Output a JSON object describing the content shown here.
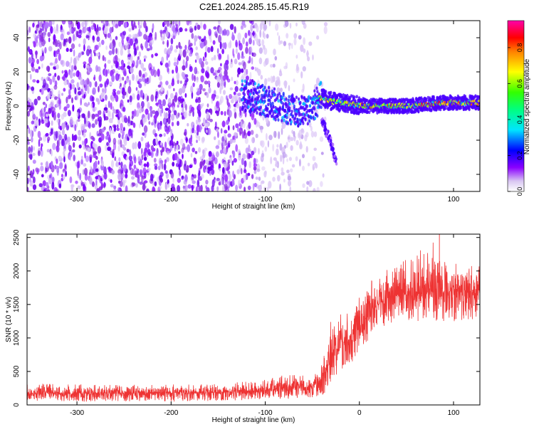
{
  "title": "C2E1.2024.285.15.45.R19",
  "chart_data": [
    {
      "type": "heatmap",
      "title": "",
      "xlabel": "Height of straight line (km)",
      "ylabel": "Frequency (Hz)",
      "xlim": [
        -353,
        128
      ],
      "ylim": [
        -50,
        50
      ],
      "xticks": [
        -300,
        -200,
        -100,
        0,
        100
      ],
      "xtick_labels": [
        "-300",
        "-200",
        "-100",
        "0",
        "100"
      ],
      "yticks": [
        -40,
        -20,
        0,
        20,
        40
      ],
      "ytick_labels": [
        "-40",
        "-20",
        "0",
        "20",
        "40"
      ],
      "colorbar": {
        "label": "Normalized spectral amplitude",
        "range": [
          0,
          0.95
        ],
        "ticks": [
          0,
          0.2,
          0.4,
          0.6,
          0.8
        ],
        "tick_labels": [
          "0.0",
          "0.2",
          "0.4",
          "0.6",
          "0.8"
        ],
        "colormap": "rainbow (white-purple-blue-cyan-green-yellow-red-magenta)"
      },
      "features": {
        "noise_region_x": [
          -353,
          -50
        ],
        "signal_trace": [
          {
            "x": -125,
            "y": 6
          },
          {
            "x": -110,
            "y": 5
          },
          {
            "x": -95,
            "y": 2
          },
          {
            "x": -80,
            "y": -1
          },
          {
            "x": -65,
            "y": -3
          },
          {
            "x": -50,
            "y": -1
          },
          {
            "x": -42,
            "y": 5
          },
          {
            "x": -30,
            "y": 3
          },
          {
            "x": -10,
            "y": 1
          },
          {
            "x": 10,
            "y": 0
          },
          {
            "x": 30,
            "y": 0
          },
          {
            "x": 50,
            "y": 0
          },
          {
            "x": 70,
            "y": 1
          },
          {
            "x": 90,
            "y": 2
          },
          {
            "x": 110,
            "y": 2
          },
          {
            "x": 128,
            "y": 2
          }
        ],
        "branch_trace": [
          {
            "x": -40,
            "y": -8
          },
          {
            "x": -35,
            "y": -15
          },
          {
            "x": -30,
            "y": -22
          },
          {
            "x": -25,
            "y": -32
          }
        ]
      }
    },
    {
      "type": "line",
      "title": "",
      "xlabel": "Height of straight line (km)",
      "ylabel": "SNR (10 * v/v)",
      "xlim": [
        -353,
        128
      ],
      "ylim": [
        0,
        2550
      ],
      "xticks": [
        -300,
        -200,
        -100,
        0,
        100
      ],
      "xtick_labels": [
        "-300",
        "-200",
        "-100",
        "0",
        "100"
      ],
      "yticks": [
        0,
        500,
        1000,
        1500,
        2000,
        2500
      ],
      "ytick_labels": [
        "0",
        "500",
        "1000",
        "1500",
        "2000",
        "2500"
      ],
      "color": "#ee3333",
      "envelope": [
        {
          "x": -353,
          "low": 50,
          "mean": 180,
          "high": 320
        },
        {
          "x": -300,
          "low": 50,
          "mean": 170,
          "high": 310
        },
        {
          "x": -250,
          "low": 50,
          "mean": 170,
          "high": 300
        },
        {
          "x": -200,
          "low": 50,
          "mean": 180,
          "high": 310
        },
        {
          "x": -150,
          "low": 60,
          "mean": 190,
          "high": 320
        },
        {
          "x": -100,
          "low": 80,
          "mean": 220,
          "high": 380
        },
        {
          "x": -70,
          "low": 100,
          "mean": 270,
          "high": 480
        },
        {
          "x": -50,
          "low": 100,
          "mean": 260,
          "high": 400
        },
        {
          "x": -40,
          "low": 120,
          "mean": 400,
          "high": 600
        },
        {
          "x": -30,
          "low": 300,
          "mean": 700,
          "high": 1300
        },
        {
          "x": -20,
          "low": 450,
          "mean": 850,
          "high": 1350
        },
        {
          "x": -10,
          "low": 600,
          "mean": 1000,
          "high": 1500
        },
        {
          "x": 0,
          "low": 750,
          "mean": 1150,
          "high": 1650
        },
        {
          "x": 10,
          "low": 950,
          "mean": 1350,
          "high": 1850
        },
        {
          "x": 20,
          "low": 1100,
          "mean": 1500,
          "high": 2000
        },
        {
          "x": 30,
          "low": 1200,
          "mean": 1600,
          "high": 2050
        },
        {
          "x": 50,
          "low": 1250,
          "mean": 1650,
          "high": 2200
        },
        {
          "x": 80,
          "low": 1250,
          "mean": 1700,
          "high": 2450
        },
        {
          "x": 100,
          "low": 1250,
          "mean": 1700,
          "high": 2150
        },
        {
          "x": 128,
          "low": 1250,
          "mean": 1700,
          "high": 2100
        }
      ],
      "peak": {
        "x": 85,
        "y": 2550
      }
    }
  ]
}
